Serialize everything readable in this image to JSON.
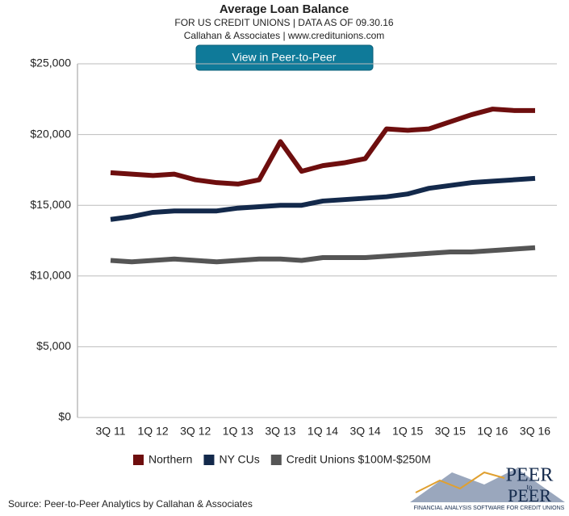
{
  "chart_data": {
    "type": "line",
    "title": "Average Loan Balance",
    "subtitle": [
      "FOR US CREDIT UNIONS | DATA AS OF 09.30.16",
      "Callahan & Associates | www.creditunions.com"
    ],
    "categories": [
      "3Q 11",
      null,
      "1Q 12",
      null,
      "3Q 12",
      null,
      "1Q 13",
      null,
      "3Q 13",
      null,
      "1Q 14",
      null,
      "3Q 14",
      null,
      "1Q 15",
      null,
      "3Q 15",
      null,
      "1Q 16",
      null,
      "3Q 16"
    ],
    "series": [
      {
        "name": "Northern",
        "color": "#6e0e0e",
        "values": [
          17300,
          17200,
          17100,
          17200,
          16800,
          16600,
          16500,
          16800,
          19500,
          17400,
          17800,
          18000,
          18300,
          20400,
          20300,
          20400,
          20900,
          21400,
          21800,
          21700,
          21700
        ]
      },
      {
        "name": "NY CUs",
        "color": "#13294b",
        "values": [
          14000,
          14200,
          14500,
          14600,
          14600,
          14600,
          14800,
          14900,
          15000,
          15000,
          15300,
          15400,
          15500,
          15600,
          15800,
          16200,
          16400,
          16600,
          16700,
          16800,
          16900
        ]
      },
      {
        "name": "Credit Unions $100M-$250M",
        "color": "#555555",
        "values": [
          11100,
          11000,
          11100,
          11200,
          11100,
          11000,
          11100,
          11200,
          11200,
          11100,
          11300,
          11300,
          11300,
          11400,
          11500,
          11600,
          11700,
          11700,
          11800,
          11900,
          12000
        ]
      }
    ],
    "ylim": [
      0,
      25000
    ],
    "yticks": [
      {
        "value": 0,
        "label": "$0"
      },
      {
        "value": 5000,
        "label": "$5,000"
      },
      {
        "value": 10000,
        "label": "$10,000"
      },
      {
        "value": 15000,
        "label": "$15,000"
      },
      {
        "value": 20000,
        "label": "$20,000"
      },
      {
        "value": 25000,
        "label": "$25,000"
      }
    ],
    "grid": true,
    "legend": "bottom"
  },
  "button": "View in Peer-to-Peer",
  "source": "Source: Peer-to-Peer Analytics by Callahan & Associates",
  "logo": {
    "top": "PEER",
    "middle": "to",
    "bottom": "PEER",
    "tagline": "FINANCIAL ANALYSIS SOFTWARE FOR CREDIT UNIONS"
  }
}
